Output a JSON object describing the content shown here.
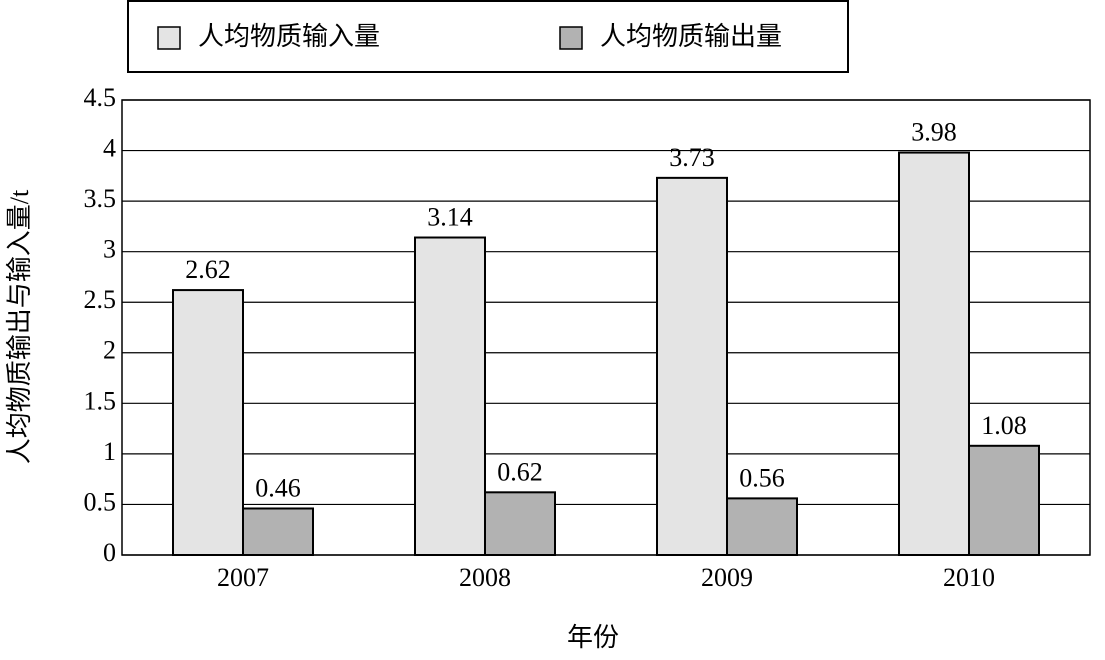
{
  "chart_data": {
    "type": "bar",
    "y_label": "人均物质输出与输入量/t",
    "x_label": "年份",
    "categories": [
      "2007",
      "2008",
      "2009",
      "2010"
    ],
    "series": [
      {
        "name": "人均物质输入量",
        "color": "#e4e4e4",
        "values": [
          2.62,
          3.14,
          3.73,
          3.98
        ]
      },
      {
        "name": "人均物质输出量",
        "color": "#b2b2b2",
        "values": [
          0.46,
          0.62,
          0.56,
          1.08
        ]
      }
    ],
    "ylim": [
      0,
      4.5
    ],
    "yticks": [
      0,
      0.5,
      1,
      1.5,
      2,
      2.5,
      3,
      3.5,
      4,
      4.5
    ],
    "grid": true,
    "legend": "top"
  }
}
